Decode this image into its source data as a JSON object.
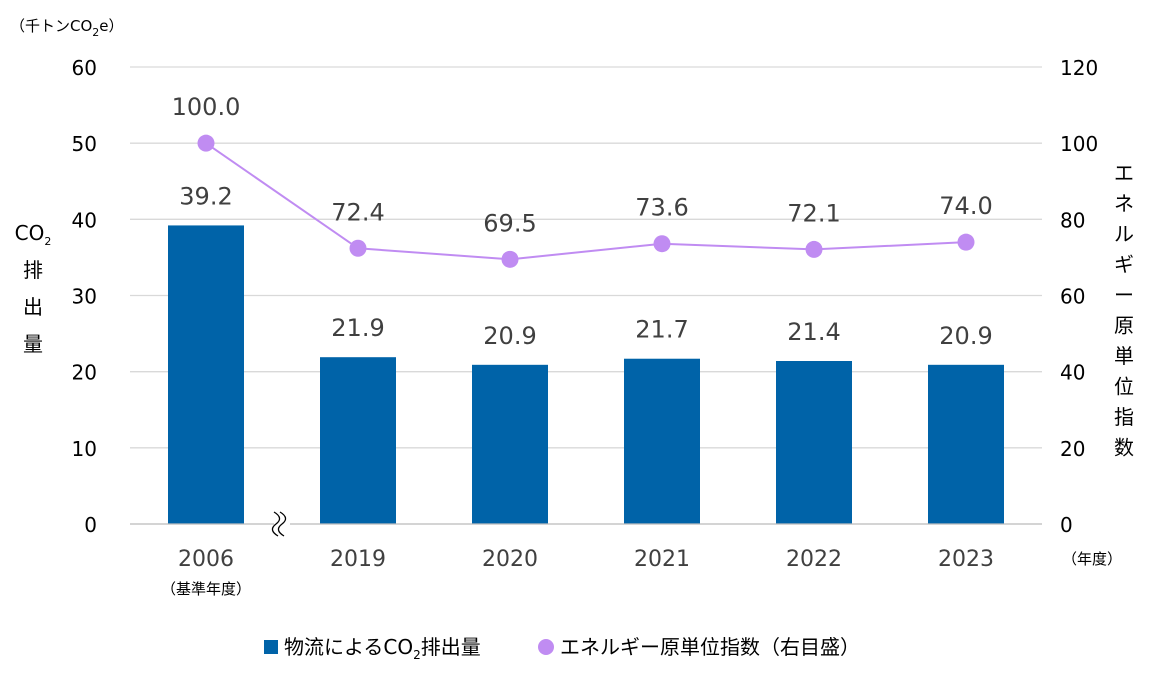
{
  "chart_data": {
    "type": "bar+line",
    "categories": [
      "2006",
      "2019",
      "2020",
      "2021",
      "2022",
      "2023"
    ],
    "category_sublabels": [
      "（基準年度）",
      "",
      "",
      "",
      "",
      ""
    ],
    "x_unit": "（年度）",
    "y_unit": "（千トンCO2e）",
    "ylabel_left": [
      "CO2",
      "排",
      "出",
      "量"
    ],
    "ylabel_right": [
      "エ",
      "ネ",
      "ル",
      "ギ",
      "ー",
      "原",
      "単",
      "位",
      "指",
      "数"
    ],
    "ylim": [
      0,
      60
    ],
    "yticks": [
      "0",
      "10",
      "20",
      "30",
      "40",
      "50",
      "60"
    ],
    "y2lim": [
      0,
      120
    ],
    "y2ticks": [
      "0",
      "20",
      "40",
      "60",
      "80",
      "100",
      "120"
    ],
    "axis_break_after_first": true,
    "grid": true,
    "legend_position": "bottom",
    "series": [
      {
        "name": "物流によるCO2排出量",
        "type": "bar",
        "axis": "left",
        "color": "#0063a8",
        "values": [
          39.2,
          21.9,
          20.9,
          21.7,
          21.4,
          20.9
        ],
        "labels": [
          "39.2",
          "21.9",
          "20.9",
          "21.7",
          "21.4",
          "20.9"
        ]
      },
      {
        "name": "エネルギー原単位指数（右目盛）",
        "type": "line",
        "axis": "right",
        "color": "#c08cf2",
        "values": [
          100.0,
          72.4,
          69.5,
          73.6,
          72.1,
          74.0
        ],
        "labels": [
          "100.0",
          "72.4",
          "69.5",
          "73.6",
          "72.1",
          "74.0"
        ]
      }
    ]
  }
}
